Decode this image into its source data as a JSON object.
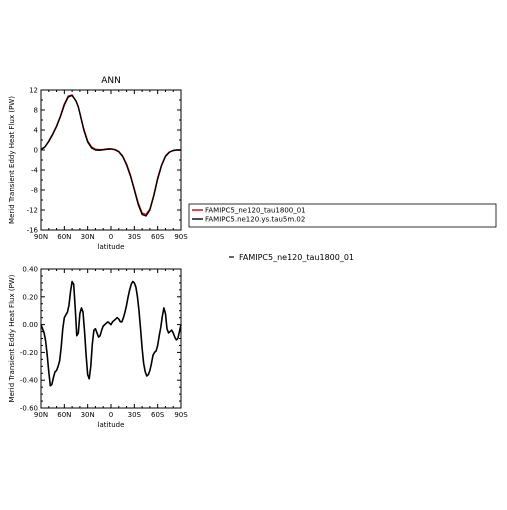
{
  "chart_data": [
    {
      "type": "line",
      "title": "ANN",
      "xlabel": "latitude",
      "ylabel": "Merid Transient Eddy Heat Flux (PW)",
      "xlim": [
        90,
        -90
      ],
      "ylim": [
        -16,
        12
      ],
      "x_tick_labels": [
        "90N",
        "60N",
        "30N",
        "0",
        "30S",
        "60S",
        "90S"
      ],
      "y_tick_labels": [
        "12",
        "8",
        "4",
        "0",
        "-4",
        "-8",
        "-12",
        "-16"
      ],
      "y_ticks": [
        12,
        8,
        4,
        0,
        -4,
        -8,
        -12,
        -16
      ],
      "legend": {
        "placement": "right",
        "entries": [
          "FAMIPC5_ne120_tau1800_01",
          "FAMIPC5.ne120.ys.tau5m.02"
        ]
      },
      "series": [
        {
          "name": "FAMIPC5_ne120_tau1800_01",
          "color": "#cc0000",
          "x": [
            90,
            85,
            80,
            75,
            70,
            65,
            60,
            55,
            50,
            45,
            42,
            40,
            35,
            30,
            25,
            20,
            15,
            10,
            5,
            0,
            -5,
            -10,
            -15,
            -20,
            -25,
            -30,
            -35,
            -40,
            -45,
            -50,
            -55,
            -60,
            -65,
            -70,
            -75,
            -80,
            -85,
            -90
          ],
          "y": [
            0.1,
            0.6,
            1.8,
            3.2,
            4.8,
            6.8,
            9.2,
            10.8,
            11.0,
            9.8,
            8.6,
            7.4,
            4.2,
            1.8,
            0.6,
            0.15,
            0.05,
            0.1,
            0.2,
            0.25,
            0.1,
            -0.3,
            -1.2,
            -2.8,
            -5.0,
            -7.8,
            -10.6,
            -12.6,
            -12.9,
            -11.8,
            -9.0,
            -5.6,
            -3.0,
            -1.2,
            -0.4,
            -0.1,
            0.0,
            0.0
          ]
        },
        {
          "name": "FAMIPC5.ne120.ys.tau5m.02",
          "color": "#000000",
          "x": [
            90,
            85,
            80,
            75,
            70,
            65,
            60,
            55,
            50,
            45,
            42,
            40,
            35,
            30,
            25,
            20,
            15,
            10,
            5,
            0,
            -5,
            -10,
            -15,
            -20,
            -25,
            -30,
            -35,
            -40,
            -45,
            -50,
            -55,
            -60,
            -65,
            -70,
            -75,
            -80,
            -85,
            -90
          ],
          "y": [
            0.1,
            0.6,
            1.7,
            3.1,
            4.7,
            6.7,
            9.0,
            10.6,
            10.9,
            9.8,
            8.6,
            7.3,
            4.0,
            1.6,
            0.4,
            0.0,
            -0.05,
            0.05,
            0.15,
            0.2,
            0.05,
            -0.35,
            -1.3,
            -3.0,
            -5.2,
            -8.0,
            -10.9,
            -12.9,
            -13.2,
            -12.0,
            -9.2,
            -5.8,
            -3.1,
            -1.3,
            -0.45,
            -0.1,
            0.0,
            0.0
          ]
        }
      ]
    },
    {
      "type": "line",
      "title": "",
      "xlabel": "latitude",
      "ylabel": "Merid Transient Eddy Heat Flux (PW)",
      "xlim": [
        90,
        -90
      ],
      "ylim": [
        -0.6,
        0.4
      ],
      "x_tick_labels": [
        "90N",
        "60N",
        "30N",
        "0",
        "30S",
        "60S",
        "90S"
      ],
      "y_tick_labels": [
        "0.40",
        "0.20",
        "0.00",
        "-0.20",
        "-0.40",
        "-0.60"
      ],
      "y_ticks": [
        0.4,
        0.2,
        0.0,
        -0.2,
        -0.4,
        -0.6
      ],
      "legend": {
        "placement": "right",
        "entries": [
          "FAMIPC5_ne120_tau1800_01"
        ]
      },
      "series": [
        {
          "name": "FAMIPC5_ne120_tau1800_01",
          "color": "#000000",
          "x": [
            90,
            88,
            86,
            84,
            82,
            80,
            78,
            76,
            74,
            72,
            70,
            68,
            66,
            64,
            62,
            60,
            58,
            56,
            54,
            52,
            50,
            48,
            46,
            44,
            42,
            40,
            38,
            36,
            34,
            32,
            30,
            28,
            26,
            24,
            22,
            20,
            18,
            16,
            14,
            12,
            10,
            8,
            6,
            4,
            2,
            0,
            -2,
            -4,
            -6,
            -8,
            -10,
            -12,
            -14,
            -16,
            -18,
            -20,
            -22,
            -24,
            -26,
            -28,
            -30,
            -32,
            -34,
            -36,
            -38,
            -40,
            -42,
            -44,
            -46,
            -48,
            -50,
            -52,
            -54,
            -56,
            -58,
            -60,
            -62,
            -64,
            -66,
            -68,
            -70,
            -72,
            -74,
            -76,
            -78,
            -80,
            -82,
            -84,
            -86,
            -88,
            -90
          ],
          "y": [
            0.0,
            -0.03,
            -0.06,
            -0.12,
            -0.22,
            -0.34,
            -0.44,
            -0.43,
            -0.38,
            -0.34,
            -0.33,
            -0.3,
            -0.26,
            -0.16,
            -0.03,
            0.05,
            0.07,
            0.09,
            0.14,
            0.24,
            0.31,
            0.29,
            0.12,
            -0.08,
            -0.06,
            0.08,
            0.12,
            0.09,
            -0.05,
            -0.22,
            -0.36,
            -0.39,
            -0.3,
            -0.14,
            -0.04,
            -0.03,
            -0.06,
            -0.09,
            -0.08,
            -0.04,
            -0.01,
            0.0,
            0.01,
            0.02,
            0.01,
            0.0,
            0.02,
            0.03,
            0.04,
            0.05,
            0.04,
            0.02,
            0.02,
            0.05,
            0.09,
            0.14,
            0.2,
            0.25,
            0.29,
            0.31,
            0.3,
            0.27,
            0.2,
            0.1,
            -0.03,
            -0.17,
            -0.28,
            -0.34,
            -0.37,
            -0.36,
            -0.33,
            -0.28,
            -0.22,
            -0.2,
            -0.19,
            -0.15,
            -0.08,
            -0.02,
            0.06,
            0.12,
            0.08,
            -0.03,
            -0.06,
            -0.05,
            -0.04,
            -0.06,
            -0.09,
            -0.11,
            -0.1,
            -0.05,
            0.0
          ]
        }
      ]
    }
  ]
}
